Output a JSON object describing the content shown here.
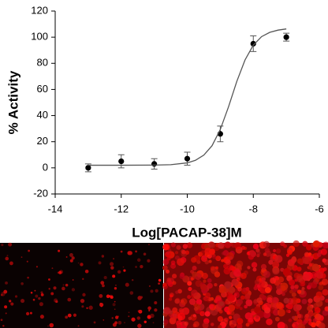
{
  "chart_data": {
    "type": "scatter",
    "x_label": "Log[PACAP-38]M",
    "y_label": "% Activity",
    "xlim": [
      -14,
      -6
    ],
    "xticks": [
      -14,
      -12,
      -10,
      -8,
      -6
    ],
    "ylim": [
      -20,
      120
    ],
    "yticks": [
      -20,
      0,
      20,
      40,
      60,
      80,
      100,
      120
    ],
    "series": [
      {
        "mode": "points",
        "color": "#000000",
        "x": [
          -13,
          -12,
          -11,
          -10,
          -9,
          -8,
          -7
        ],
        "values": [
          0,
          5,
          3,
          7,
          26,
          95,
          100
        ],
        "errors": [
          3,
          5,
          4,
          5,
          6,
          6,
          3
        ]
      },
      {
        "mode": "line",
        "color": "#555555",
        "x": [
          -13,
          -12,
          -11,
          -10.5,
          -10,
          -9.75,
          -9.5,
          -9.25,
          -9,
          -8.75,
          -8.5,
          -8.25,
          -8,
          -7.75,
          -7.5,
          -7.25,
          -7
        ],
        "values": [
          2.0,
          2.0,
          2.1,
          2.4,
          3.8,
          5.8,
          9.7,
          16.9,
          29.3,
          46.7,
          66.1,
          82.6,
          93.9,
          100.4,
          103.7,
          105.4,
          106.3
        ]
      }
    ]
  }
}
